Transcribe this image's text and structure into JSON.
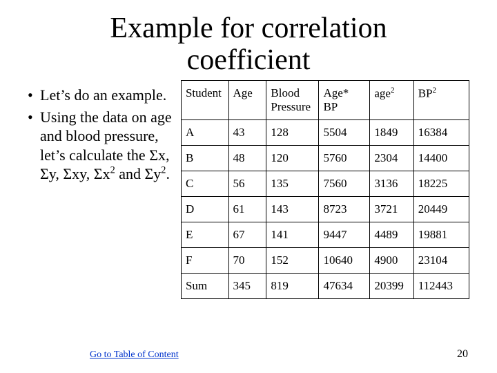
{
  "title_line1": "Example for correlation",
  "title_line2": "coefficient",
  "bullets": {
    "b1": "Let’s do an example.",
    "b2_pre": "Using the data on age and blood pressure, let’s calculate the Σx, Σy, Σxy, Σx",
    "b2_sup1": "2",
    "b2_mid": " and Σy",
    "b2_sup2": "2",
    "b2_post": "."
  },
  "table": {
    "headers": {
      "c0": "Student",
      "c1": "Age",
      "c2": "Blood Pressure",
      "c3": "Age* BP",
      "c4_base": "age",
      "c4_sup": "2",
      "c5_base": "BP",
      "c5_sup": "2"
    },
    "rows": [
      {
        "c0": "A",
        "c1": "43",
        "c2": "128",
        "c3": "5504",
        "c4": "1849",
        "c5": "16384"
      },
      {
        "c0": "B",
        "c1": "48",
        "c2": "120",
        "c3": "5760",
        "c4": "2304",
        "c5": "14400"
      },
      {
        "c0": "C",
        "c1": "56",
        "c2": "135",
        "c3": "7560",
        "c4": "3136",
        "c5": "18225"
      },
      {
        "c0": "D",
        "c1": "61",
        "c2": "143",
        "c3": "8723",
        "c4": "3721",
        "c5": "20449"
      },
      {
        "c0": "E",
        "c1": "67",
        "c2": "141",
        "c3": "9447",
        "c4": "4489",
        "c5": "19881"
      },
      {
        "c0": "F",
        "c1": "70",
        "c2": "152",
        "c3": "10640",
        "c4": "4900",
        "c5": "23104"
      },
      {
        "c0": "Sum",
        "c1": "345",
        "c2": "819",
        "c3": "47634",
        "c4": "20399",
        "c5": "112443"
      }
    ],
    "col_widths": [
      "60px",
      "52px",
      "72px",
      "70px",
      "60px",
      "76px"
    ],
    "border_color": "#000000",
    "background_color": "#ffffff",
    "font_size": 17
  },
  "footer": {
    "link_text": "Go to Table of Content",
    "link_color": "#0033cc",
    "page_number": "20"
  },
  "colors": {
    "text": "#000000",
    "background": "#ffffff"
  }
}
